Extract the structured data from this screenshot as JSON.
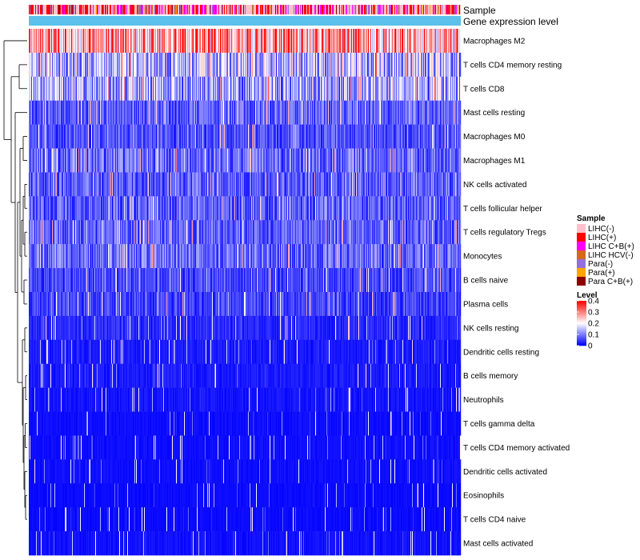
{
  "chart_data": {
    "type": "heatmap",
    "annotation_labels": [
      "Sample",
      "Gene expression level"
    ],
    "rows": [
      {
        "name": "Macrophages M2",
        "mean": 0.28
      },
      {
        "name": "T cells CD4 memory resting",
        "mean": 0.14
      },
      {
        "name": "T cells CD8",
        "mean": 0.13
      },
      {
        "name": "Mast cells resting",
        "mean": 0.07
      },
      {
        "name": "Macrophages M0",
        "mean": 0.06
      },
      {
        "name": "Macrophages M1",
        "mean": 0.08
      },
      {
        "name": "NK cells activated",
        "mean": 0.07
      },
      {
        "name": "T cells follicular helper",
        "mean": 0.07
      },
      {
        "name": "T cells regulatory  Tregs",
        "mean": 0.07
      },
      {
        "name": "Monocytes",
        "mean": 0.08
      },
      {
        "name": "B cells naive",
        "mean": 0.05
      },
      {
        "name": "Plasma cells",
        "mean": 0.05
      },
      {
        "name": "NK cells resting",
        "mean": 0.03
      },
      {
        "name": "Dendritic cells resting",
        "mean": 0.02
      },
      {
        "name": "B cells memory",
        "mean": 0.02
      },
      {
        "name": "Neutrophils",
        "mean": 0.015
      },
      {
        "name": "T cells gamma delta",
        "mean": 0.01
      },
      {
        "name": "T cells CD4 memory activated",
        "mean": 0.01
      },
      {
        "name": "Dendritic cells activated",
        "mean": 0.01
      },
      {
        "name": "Eosinophils",
        "mean": 0.008
      },
      {
        "name": "T cells CD4 naive",
        "mean": 0.008
      },
      {
        "name": "Mast cells activated",
        "mean": 0.012
      }
    ],
    "n_samples": 540,
    "legend": {
      "sample_title": "Sample",
      "sample_groups": [
        {
          "label": "LIHC(-)",
          "color": "#FFC0CB"
        },
        {
          "label": "LIHC(+)",
          "color": "#FF0000"
        },
        {
          "label": "LIHC C+B(+)",
          "color": "#FF00FF"
        },
        {
          "label": "LIHC HCV(-)",
          "color": "#D2691E"
        },
        {
          "label": "Para(-)",
          "color": "#9370DB"
        },
        {
          "label": "Para(+)",
          "color": "#FFA500"
        },
        {
          "label": "Para C+B(+)",
          "color": "#8B0000"
        }
      ],
      "level_title": "Level",
      "level_ticks": [
        "0.4",
        "0.3",
        "0.2",
        "0.1",
        "0"
      ],
      "level_range": [
        0,
        0.4
      ],
      "level_colors": [
        "#0000FF",
        "#FFFFFF",
        "#FF0000"
      ]
    },
    "gene_expression_color": "#5BC0EB"
  }
}
